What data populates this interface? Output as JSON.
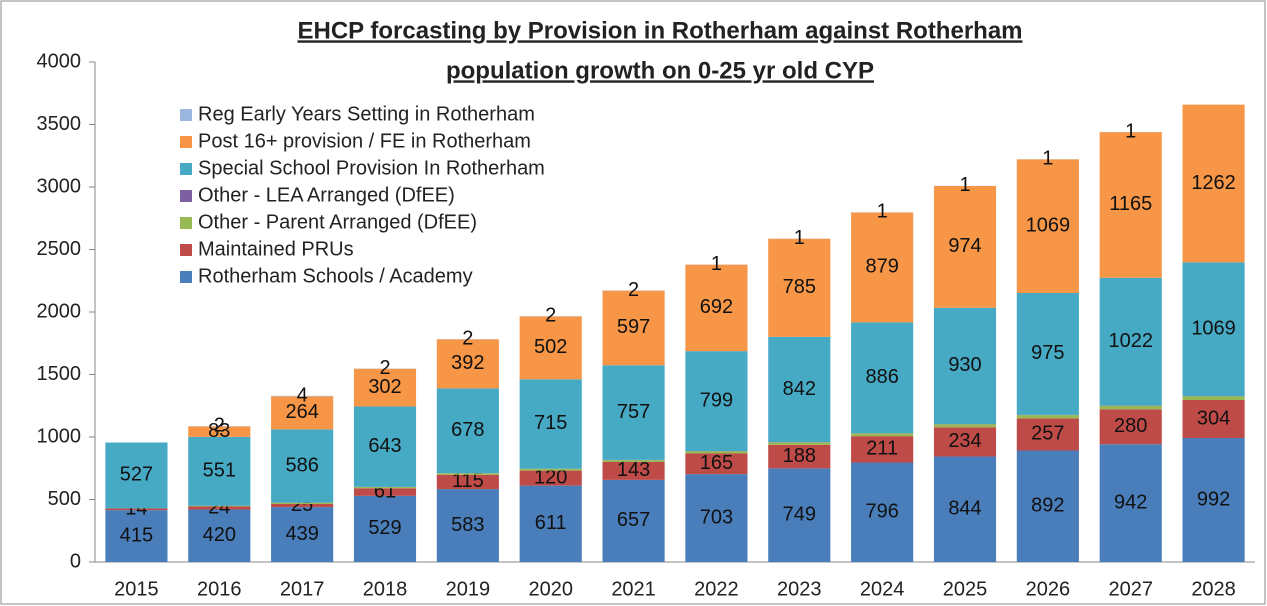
{
  "chart_data": {
    "type": "stacked_bar",
    "title": [
      "EHCP forcasting by Provision in Rotherham against Rotherham",
      "population growth on 0-25 yr old CYP"
    ],
    "categories": [
      "2015",
      "2016",
      "2017",
      "2018",
      "2019",
      "2020",
      "2021",
      "2022",
      "2023",
      "2024",
      "2025",
      "2026",
      "2027",
      "2028"
    ],
    "series": [
      {
        "name": "Rotherham Schools / Academy",
        "color": "#4a7ebb",
        "labels": true,
        "values": [
          415,
          420,
          439,
          529,
          583,
          611,
          657,
          703,
          749,
          796,
          844,
          892,
          942,
          992
        ]
      },
      {
        "name": "Maintained PRUs",
        "color": "#be4b48",
        "labels": true,
        "values": [
          14,
          24,
          25,
          61,
          115,
          120,
          143,
          165,
          188,
          211,
          234,
          257,
          280,
          304
        ]
      },
      {
        "name": "Other - Parent Arranged (DfEE)",
        "color": "#98b954",
        "labels": false,
        "values": [
          0,
          5,
          10,
          10,
          12,
          15,
          15,
          18,
          20,
          22,
          24,
          26,
          28,
          30
        ]
      },
      {
        "name": "Other - LEA Arranged (DfEE)",
        "color": "#7d60a0",
        "labels": false,
        "values": [
          0,
          1,
          1,
          1,
          1,
          1,
          2,
          2,
          2,
          2,
          2,
          2,
          2,
          2
        ]
      },
      {
        "name": "Special School Provision In Rotherham",
        "color": "#46aac5",
        "labels": true,
        "values": [
          527,
          551,
          586,
          643,
          678,
          715,
          757,
          799,
          842,
          886,
          930,
          975,
          1022,
          1069
        ]
      },
      {
        "name": "Post 16+ provision / FE in Rotherham",
        "color": "#f79646",
        "labels": true,
        "values": [
          null,
          83,
          264,
          302,
          392,
          502,
          597,
          692,
          785,
          879,
          974,
          1069,
          1165,
          1262
        ]
      },
      {
        "name": "Reg Early Years Setting in Rotherham",
        "color": "#9bb7e0",
        "labels": true,
        "values": [
          null,
          2,
          4,
          2,
          2,
          2,
          2,
          1,
          1,
          1,
          1,
          1,
          1,
          null
        ]
      }
    ],
    "ylim": [
      0,
      4000
    ],
    "yticks": [
      0,
      500,
      1000,
      1500,
      2000,
      2500,
      3000,
      3500,
      4000
    ],
    "grid": false,
    "legend": "upper left"
  }
}
